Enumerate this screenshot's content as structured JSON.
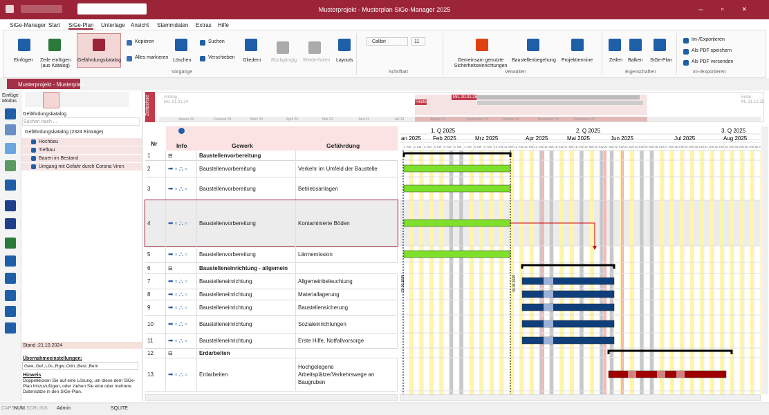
{
  "title_bar": {
    "title": "Musterprojekt - Musterplan SiGe-Manager 2025"
  },
  "menu": [
    "SiGe-Manager",
    "Start",
    "SiGe-Plan",
    "Unterlage",
    "Ansicht",
    "Stammdaten",
    "Extras",
    "Hilfe"
  ],
  "ribbon": {
    "einfuegen": "Einfügen",
    "zeile_einfuegen": "Zeile einfügen (aus Katalog)",
    "katalog": "Gefährdungskatalog",
    "kopieren": "Kopieren",
    "alles_markieren": "Alles markieren",
    "loeschen": "Löschen",
    "suchen": "Suchen",
    "verschieben": "Verschieben",
    "vorgaenge": "Vorgänge",
    "gliedern": "Gliedern",
    "rueckgaengig": "Rückgängig",
    "wiederholen": "Wiederholen",
    "layouts": "Layouts",
    "font": "Calibri",
    "font_size": "11",
    "schriftart": "Schriftart",
    "gemeinsam": "Gemeinsam genutzte Sicherheitseinrichtungen",
    "begehung": "Baustellenbegehung",
    "termine": "Projekttermine",
    "verwalten": "Verwalten",
    "zeilen": "Zeilen",
    "balken": "Balken",
    "sige_plan": "SiGe-Plan",
    "eigenschaften": "Eigenschaften",
    "im_export": "Im-/Exportieren",
    "pdf_speichern": "Als PDF speichern",
    "pdf_versenden": "Als PDF versenden",
    "im_export_group": "Im-/Exportieren"
  },
  "doc_tab": "Musterprojekt - Musterplan",
  "left_panel": {
    "mode": "Einfüge Modus",
    "heading": "Gefährdungskatalog",
    "search": "Suchen nach ...",
    "catalog": "Gefährdungskatalog (2324 Einträge)",
    "tree": [
      "Hochbau",
      "Tiefbau",
      "Bauen im Bestand",
      "Umgang mit Gefahr durch Corona Viren"
    ],
    "stand": "Stand :21.10.2024",
    "settings_label": "Übernahmeeinstellungen:",
    "settings_value": "Gew.,Gef.,Lös.,Rgw.,Odn.,Best.,Bem",
    "hint_title": "Hinweis",
    "hint_text": "Doppelklicken Sie auf eine Lösung, um diese dem SiGe-Plan hinzuzufügen, oder ziehen Sie eine oder mehrere Datensätze in den SiGe-Plan."
  },
  "timeline": {
    "label": "Zeitachse",
    "start_label": "Anfang",
    "start_date": "Mo. 01.01.24",
    "today": "Heute",
    "today_date": "Mo. 20.01.25",
    "end_label": "Ende",
    "end_date": "Mi. 31.12.25",
    "months": [
      "Januar 24",
      "Februar 24",
      "März 24",
      "April 24",
      "Mai 24",
      "Juni 24",
      "Juli 24",
      "August 24",
      "September 24",
      "Oktober 24",
      "November 24",
      "Dezember 24"
    ]
  },
  "table": {
    "columns": [
      "Nr",
      "Info",
      "Gewerk",
      "Gefährdung"
    ],
    "rows": [
      {
        "nr": 1,
        "gewerk": "Baustellenvorbereitung"
      },
      {
        "nr": 2,
        "gewerk": "Baustellenvorbereitung",
        "gefaehrdung": "Verkehr im Umfeld der Baustelle"
      },
      {
        "nr": 3,
        "gewerk": "Baustellenvorbereitung",
        "gefaehrdung": "Betriebsanlagen"
      },
      {
        "nr": 4,
        "gewerk": "Baustellenvorbereitung",
        "gefaehrdung": "Kontaminierte Böden"
      },
      {
        "nr": 5,
        "gewerk": "Baustellenvorbereitung",
        "gefaehrdung": "Lärmemission"
      },
      {
        "nr": 6,
        "gewerk": "Baustelleneinrichtung - allgemein"
      },
      {
        "nr": 7,
        "gewerk": "Baustelleneinrichtung",
        "gefaehrdung": "Allgemeinbeleuchtung"
      },
      {
        "nr": 8,
        "gewerk": "Baustelleneinrichtung",
        "gefaehrdung": "Materiallagerung"
      },
      {
        "nr": 9,
        "gewerk": "Baustelleneinrichtung",
        "gefaehrdung": "Baustellensicherung"
      },
      {
        "nr": 10,
        "gewerk": "Baustelleneinrichtung",
        "gefaehrdung": "Sozialeinrichtungen"
      },
      {
        "nr": 11,
        "gewerk": "Baustelleneinrichtung",
        "gefaehrdung": "Erste Hilfe, Notfallvorsorge"
      },
      {
        "nr": 12,
        "gewerk": "Erdarbeiten"
      },
      {
        "nr": 13,
        "gewerk": "Erdarbeiten",
        "gefaehrdung": "Hochgelegene Arbeitsplätze/Verkehrswege an Baugruben"
      }
    ]
  },
  "gantt": {
    "quarters": [
      "1. Q 2025",
      "2. Q 2025",
      "3. Q 2025"
    ],
    "months": [
      "an 2025",
      "Feb 2025",
      "Mrz 2025",
      "Apr 2025",
      "Mai 2025",
      "Jun 2025",
      "Jul 2025",
      "Aug 2025"
    ],
    "weeks": [
      "1. KW",
      "2. KW",
      "3. KW",
      "4. KW",
      "5. KW",
      "6. KW",
      "7. KW",
      "8. KW",
      "9. KW",
      "10. KW",
      "11. KW",
      "12. KW",
      "13. KW",
      "14. KW",
      "15. KW",
      "16. KW",
      "17. KW",
      "18. KW",
      "19. KW",
      "20. KW",
      "21. KW",
      "22. KW",
      "23. KW",
      "24. KW",
      "25. KW",
      "26. KW",
      "27. KW",
      "28. KW",
      "29. KW",
      "30. KW",
      "31. KW",
      "32. KW",
      "33. KW",
      "34. KW",
      "35. KW",
      "36. KW"
    ],
    "date_markers": [
      "20.01.2025",
      "30.03.2025"
    ]
  },
  "status_bar": [
    "CAPS",
    "NUM",
    "SCRL",
    "INS",
    "Admin",
    "SQLITE"
  ]
}
